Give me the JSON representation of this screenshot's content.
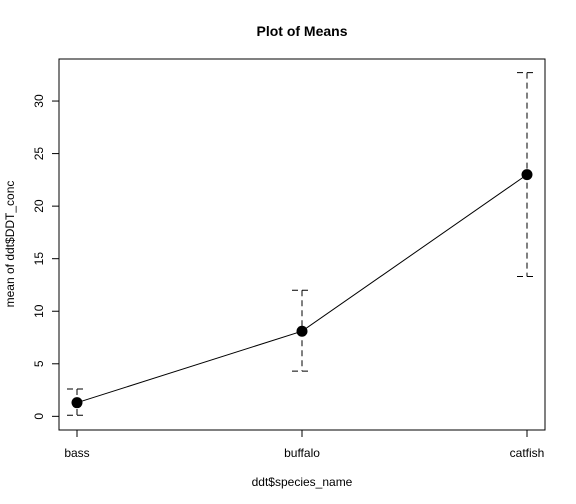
{
  "chart_data": {
    "type": "line",
    "title": "Plot of Means",
    "xlabel": "ddt$species_name",
    "ylabel": "mean of ddt$DDT_conc",
    "categories": [
      "bass",
      "buffalo",
      "catfish"
    ],
    "series": [
      {
        "values": [
          1.3,
          8.1,
          23.0
        ],
        "error_lower": [
          0.1,
          4.3,
          13.3
        ],
        "error_upper": [
          2.6,
          12.0,
          32.7
        ]
      }
    ],
    "yticks": [
      0,
      5,
      10,
      15,
      20,
      25,
      30
    ],
    "ylim": [
      -1.3,
      34.0
    ],
    "grid": false,
    "error_bar_style": "dashed"
  }
}
